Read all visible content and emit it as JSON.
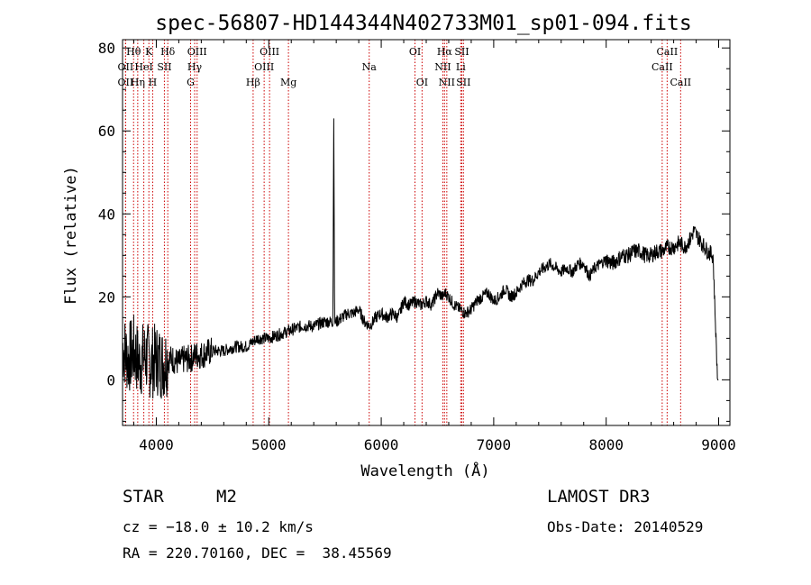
{
  "chart_data": {
    "type": "line",
    "title": "spec-56807-HD144344N402733M01_sp01-094.fits",
    "xlabel": "Wavelength (Å)",
    "ylabel": "Flux (relative)",
    "xlim": [
      3700,
      9100
    ],
    "ylim": [
      -11,
      82
    ],
    "xticks": [
      4000,
      5000,
      6000,
      7000,
      8000,
      9000
    ],
    "yticks": [
      0,
      20,
      40,
      60,
      80
    ],
    "grid": false,
    "series": [
      {
        "name": "flux",
        "color": "#000000",
        "x": [
          3700,
          3750,
          3800,
          3850,
          3900,
          3950,
          4000,
          4050,
          4100,
          4150,
          4200,
          4250,
          4300,
          4350,
          4400,
          4500,
          4600,
          4700,
          4800,
          4900,
          5000,
          5100,
          5200,
          5300,
          5400,
          5500,
          5550,
          5570,
          5578,
          5585,
          5600,
          5650,
          5700,
          5750,
          5800,
          5850,
          5900,
          5950,
          6000,
          6050,
          6100,
          6150,
          6200,
          6250,
          6300,
          6350,
          6400,
          6450,
          6500,
          6550,
          6570,
          6600,
          6650,
          6700,
          6750,
          6800,
          6850,
          6900,
          6950,
          7000,
          7050,
          7100,
          7150,
          7200,
          7250,
          7300,
          7350,
          7400,
          7450,
          7500,
          7550,
          7600,
          7650,
          7700,
          7750,
          7800,
          7850,
          7900,
          7950,
          8000,
          8050,
          8100,
          8150,
          8200,
          8250,
          8300,
          8350,
          8400,
          8450,
          8500,
          8550,
          8600,
          8650,
          8700,
          8750,
          8780,
          8800,
          8850,
          8900,
          8950,
          8990,
          9000
        ],
        "y": [
          8,
          5,
          7,
          4,
          6,
          4,
          5,
          4,
          5,
          5,
          4,
          5,
          5,
          6,
          6,
          7,
          7,
          8,
          8,
          10,
          10,
          11,
          12,
          13,
          13,
          14,
          14,
          14,
          63,
          14,
          14,
          15,
          16,
          16,
          17,
          14,
          13,
          15,
          16,
          15,
          16,
          15,
          19,
          18,
          19,
          18,
          19,
          18,
          21,
          20,
          21,
          20,
          18,
          17,
          16,
          17,
          19,
          20,
          21,
          19,
          20,
          22,
          20,
          21,
          23,
          24,
          24,
          26,
          27,
          28,
          27,
          26,
          27,
          26,
          28,
          28,
          25,
          27,
          28,
          29,
          28,
          29,
          30,
          30,
          31,
          31,
          30,
          30,
          31,
          31,
          32,
          32,
          33,
          32,
          34,
          36,
          35,
          33,
          31,
          30,
          0,
          0
        ]
      }
    ],
    "line_annotations": [
      {
        "label": "Hθ",
        "wavelength": 3798,
        "row": 1
      },
      {
        "label": "OII",
        "wavelength": 3727,
        "row": 2
      },
      {
        "label": "OII",
        "wavelength": 3727,
        "row": 3
      },
      {
        "label": "Hη",
        "wavelength": 3835,
        "row": 3
      },
      {
        "label": "HeI",
        "wavelength": 3889,
        "row": 2
      },
      {
        "label": "K",
        "wavelength": 3934,
        "row": 1
      },
      {
        "label": "H",
        "wavelength": 3968,
        "row": 3
      },
      {
        "label": "SII",
        "wavelength": 4072,
        "row": 2
      },
      {
        "label": "Hδ",
        "wavelength": 4102,
        "row": 1
      },
      {
        "label": "OIII",
        "wavelength": 4363,
        "row": 1
      },
      {
        "label": "Hγ",
        "wavelength": 4341,
        "row": 2
      },
      {
        "label": "G",
        "wavelength": 4305,
        "row": 3
      },
      {
        "label": "Hβ",
        "wavelength": 4861,
        "row": 3
      },
      {
        "label": "OIII",
        "wavelength": 4959,
        "row": 2
      },
      {
        "label": "OIII",
        "wavelength": 5007,
        "row": 1
      },
      {
        "label": "Mg",
        "wavelength": 5175,
        "row": 3
      },
      {
        "label": "Na",
        "wavelength": 5893,
        "row": 2
      },
      {
        "label": "OI",
        "wavelength": 6300,
        "row": 1
      },
      {
        "label": "OI",
        "wavelength": 6363,
        "row": 3
      },
      {
        "label": "Hα",
        "wavelength": 6563,
        "row": 1
      },
      {
        "label": "NII",
        "wavelength": 6548,
        "row": 2
      },
      {
        "label": "NII",
        "wavelength": 6583,
        "row": 3
      },
      {
        "label": "Li",
        "wavelength": 6707,
        "row": 2
      },
      {
        "label": "SII",
        "wavelength": 6716,
        "row": 1
      },
      {
        "label": "SII",
        "wavelength": 6731,
        "row": 3
      },
      {
        "label": "CaII",
        "wavelength": 8498,
        "row": 2
      },
      {
        "label": "CaII",
        "wavelength": 8542,
        "row": 1
      },
      {
        "label": "CaII",
        "wavelength": 8662,
        "row": 3
      }
    ],
    "line_marker_color": "#cc0000"
  },
  "info": {
    "object_type": "STAR",
    "subclass": "M2",
    "survey": "LAMOST DR3",
    "redshift": "cz = −18.0 ± 10.2 km/s",
    "obs_date": "Obs-Date: 20140529",
    "coords": "RA = 220.70160, DEC =  38.45569"
  }
}
